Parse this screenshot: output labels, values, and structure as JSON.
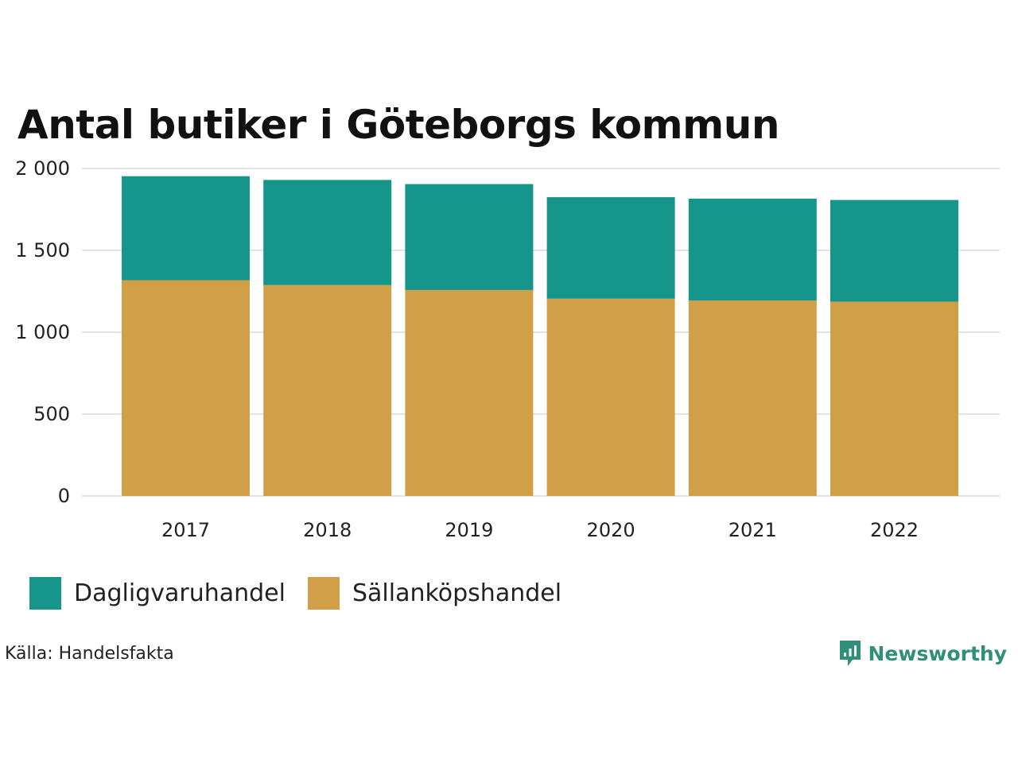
{
  "chart_data": {
    "type": "bar",
    "stacked": true,
    "title": "Antal butiker i Göteborgs kommun",
    "categories": [
      "2017",
      "2018",
      "2019",
      "2020",
      "2021",
      "2022"
    ],
    "series": [
      {
        "name": "Sällanköpshandel",
        "color": "#d19f48",
        "values": [
          1318,
          1288,
          1258,
          1205,
          1193,
          1187
        ]
      },
      {
        "name": "Dagligvaruhandel",
        "color": "#16968a",
        "values": [
          635,
          642,
          647,
          620,
          623,
          621
        ]
      }
    ],
    "ylim": [
      0,
      2000
    ],
    "yticks": [
      0,
      500,
      1000,
      1500,
      2000
    ],
    "ytick_labels": [
      "0",
      "500",
      "1 000",
      "1 500",
      "2 000"
    ],
    "xlabel": "",
    "ylabel": "",
    "grid": true,
    "legend_position": "bottom-left"
  },
  "legend": [
    {
      "name": "Dagligvaruhandel",
      "color": "#16968a"
    },
    {
      "name": "Sällanköpshandel",
      "color": "#d19f48"
    }
  ],
  "source": "Källa: Handelsfakta",
  "brand": {
    "name": "Newsworthy",
    "icon": "newsworthy-logo-icon",
    "color": "#2f8f78"
  }
}
